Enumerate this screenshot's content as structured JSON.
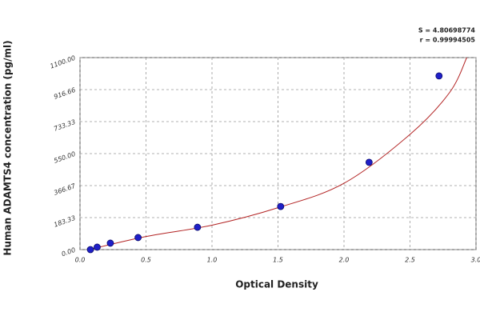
{
  "chart_data": {
    "type": "scatter",
    "x_label": "Optical Density",
    "y_label": "Human ADAMTS4 concentration (pg/ml)",
    "annotations": [
      "S = 4.80698774",
      "r = 0.99994505"
    ],
    "xlim": [
      0,
      3
    ],
    "ylim": [
      0,
      1100
    ],
    "xticks": [
      {
        "value": 0,
        "label": "0.0"
      },
      0.5,
      {
        "value": 1,
        "label": "1.0"
      },
      1.5,
      {
        "value": 2,
        "label": "2.0"
      },
      2.5,
      {
        "value": 3,
        "label": "3.0"
      }
    ],
    "yticks": [
      {
        "value": 0,
        "label": "0.00"
      },
      183.33,
      366.67,
      {
        "value": 550,
        "label": "550.00"
      },
      733.33,
      916.66,
      {
        "value": 1100,
        "label": "1100.00"
      }
    ],
    "grid": true,
    "series": [
      {
        "color": "#1f1fc8",
        "x": [
          0.079,
          0.13,
          0.23,
          0.44,
          0.89,
          1.52,
          2.19,
          2.72
        ],
        "values": [
          0,
          14,
          37,
          69,
          128,
          247,
          500,
          995
        ]
      }
    ],
    "fit": {
      "color": "#b22222",
      "x": [
        0.07,
        0.5,
        1.0,
        1.5,
        2.0,
        2.5,
        2.8,
        2.93
      ],
      "values": [
        0,
        75,
        140,
        240,
        380,
        660,
        900,
        1100
      ]
    }
  }
}
